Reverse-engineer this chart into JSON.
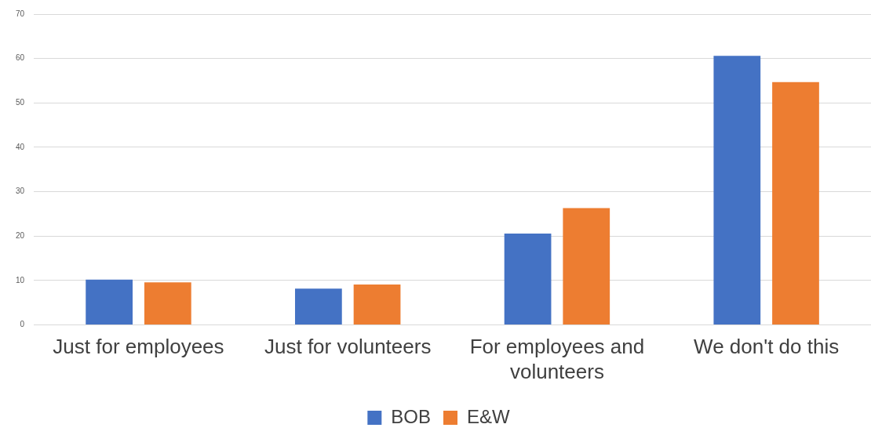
{
  "chart_data": {
    "type": "bar",
    "categories": [
      "Just for employees",
      "Just for volunteers",
      "For employees and volunteers",
      "We don't do this"
    ],
    "series": [
      {
        "name": "BOB",
        "color": "#4472c4",
        "values": [
          10.2,
          8.2,
          20.6,
          60.6
        ]
      },
      {
        "name": "E&W",
        "color": "#ed7d31",
        "values": [
          9.6,
          9.1,
          26.3,
          54.7
        ]
      }
    ],
    "ylim": [
      0,
      70
    ],
    "yticks": [
      0,
      10,
      20,
      30,
      40,
      50,
      60,
      70
    ],
    "grid": "y",
    "legend": "bottom"
  }
}
